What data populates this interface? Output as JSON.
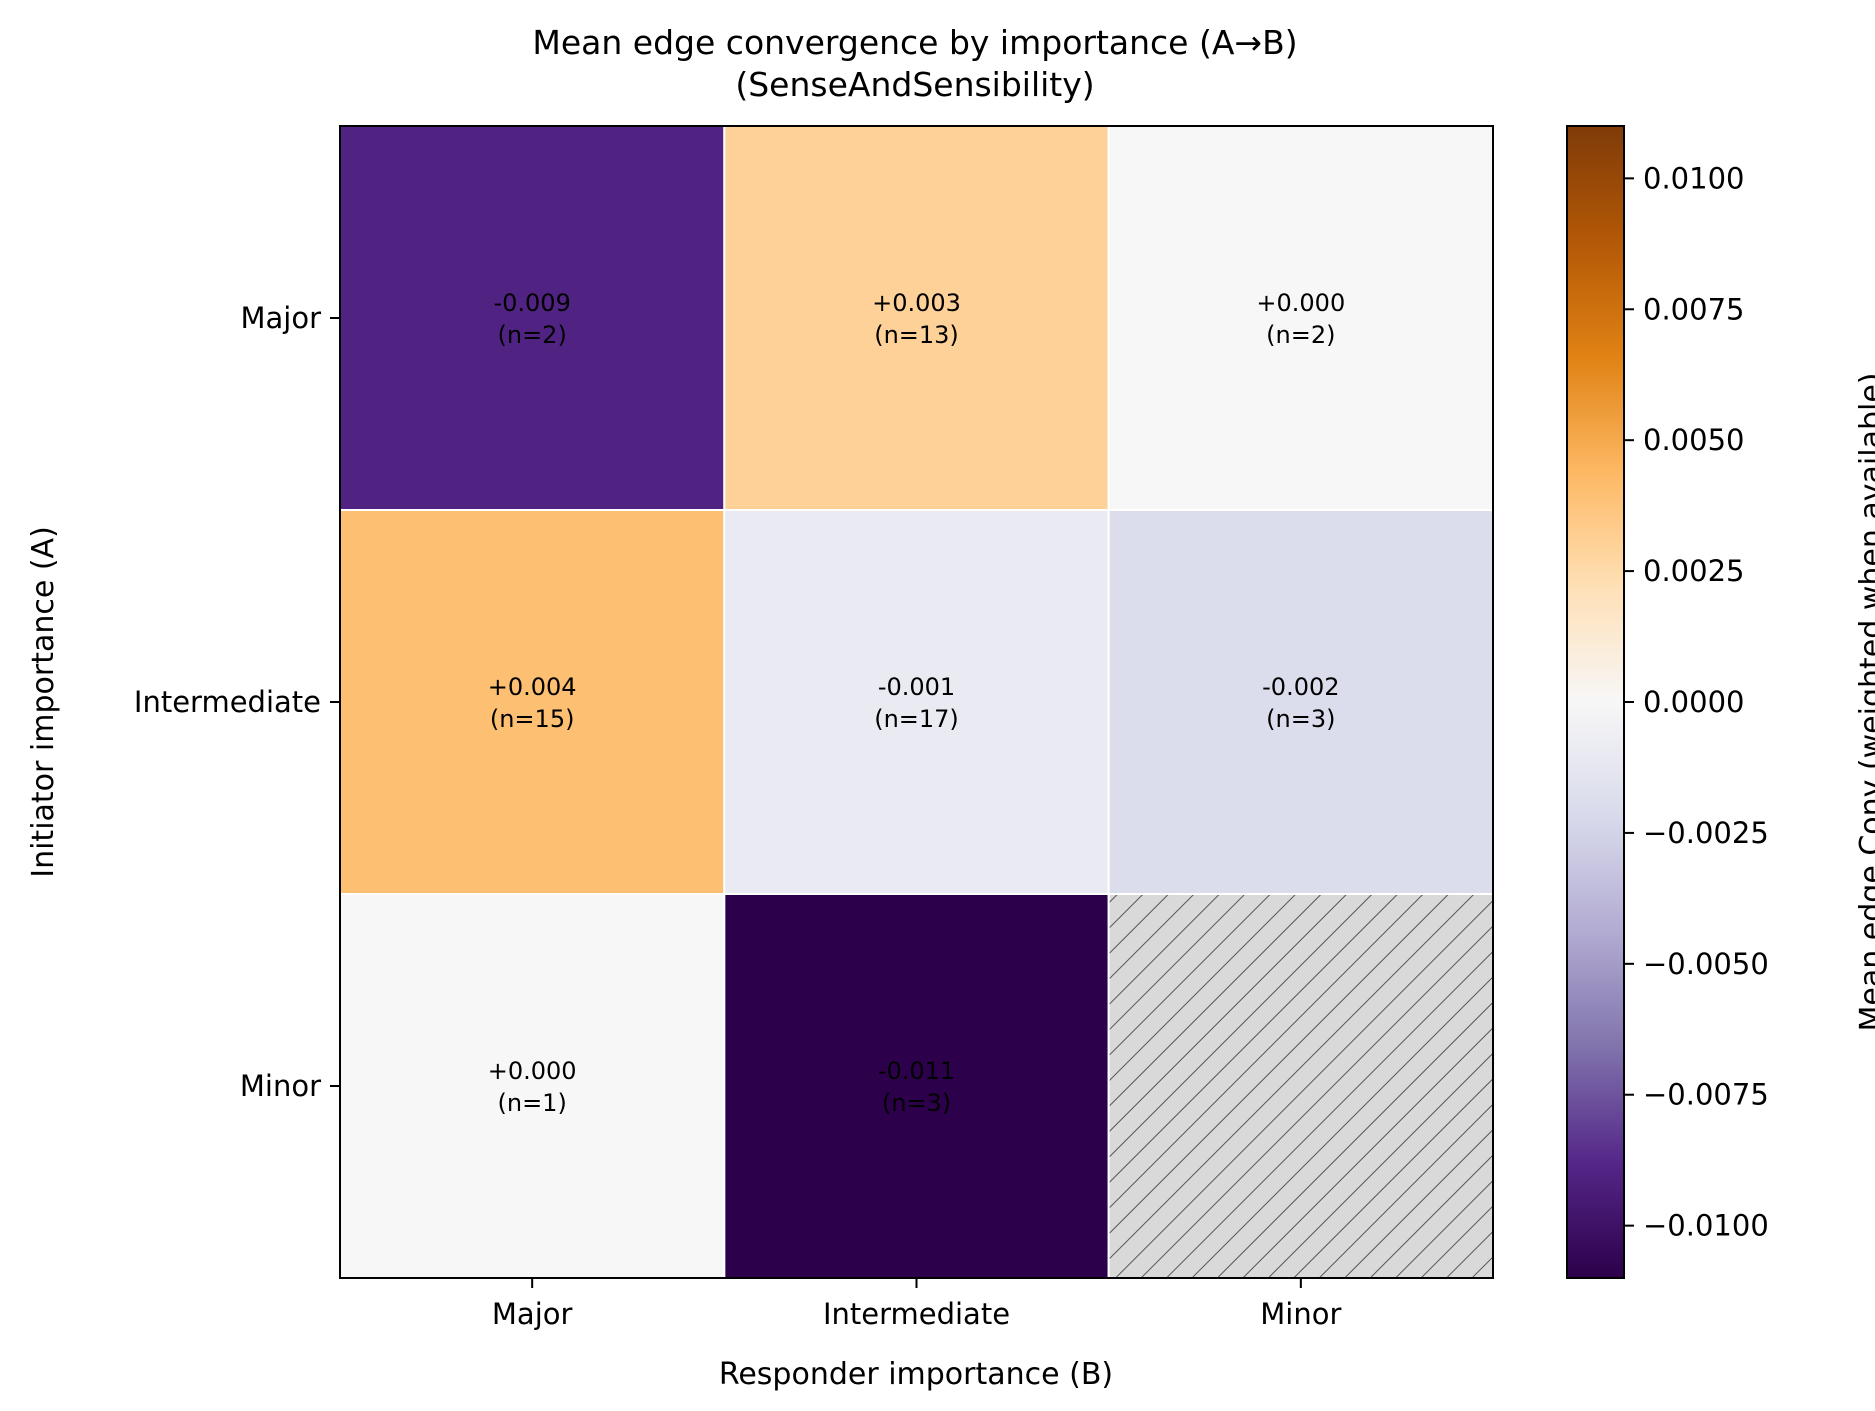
{
  "chart_data": {
    "type": "heatmap",
    "title": "Mean edge convergence by importance (A→B)",
    "subtitle": "(SenseAndSensibility)",
    "xlabel": "Responder importance (B)",
    "ylabel": "Initiator importance (A)",
    "x_categories": [
      "Major",
      "Intermediate",
      "Minor"
    ],
    "y_categories": [
      "Major",
      "Intermediate",
      "Minor"
    ],
    "cells": [
      [
        {
          "value": -0.009,
          "label": "-0.009",
          "n_label": "(n=2)"
        },
        {
          "value": 0.003,
          "label": "+0.003",
          "n_label": "(n=13)"
        },
        {
          "value": 0.0,
          "label": "+0.000",
          "n_label": "(n=2)"
        }
      ],
      [
        {
          "value": 0.004,
          "label": "+0.004",
          "n_label": "(n=15)"
        },
        {
          "value": -0.001,
          "label": "-0.001",
          "n_label": "(n=17)"
        },
        {
          "value": -0.002,
          "label": "-0.002",
          "n_label": "(n=3)"
        }
      ],
      [
        {
          "value": 0.0,
          "label": "+0.000",
          "n_label": "(n=1)"
        },
        {
          "value": -0.011,
          "label": "-0.011",
          "n_label": "(n=3)"
        },
        {
          "value": null,
          "label": null,
          "n_label": null,
          "missing": true
        }
      ]
    ],
    "colorbar": {
      "label": "Mean edge Conv (weighted when available)",
      "range": [
        -0.011,
        0.011
      ],
      "ticks": [
        0.01,
        0.0075,
        0.005,
        0.0025,
        0.0,
        -0.0025,
        -0.005,
        -0.0075,
        -0.01
      ],
      "tick_labels": [
        "0.0100",
        "0.0075",
        "0.0050",
        "0.0025",
        "0.0000",
        "−0.0025",
        "−0.0050",
        "−0.0075",
        "−0.0100"
      ],
      "colormap": "PuOr_r",
      "colormap_stops": [
        "#2d004b",
        "#542788",
        "#8073ac",
        "#b2abd2",
        "#d8daeb",
        "#f7f7f7",
        "#fee0b6",
        "#fdb863",
        "#e08214",
        "#b35806",
        "#7f3b08"
      ]
    },
    "missing_cell_color": "#d9d9d9",
    "hatch_color": "#555555"
  }
}
